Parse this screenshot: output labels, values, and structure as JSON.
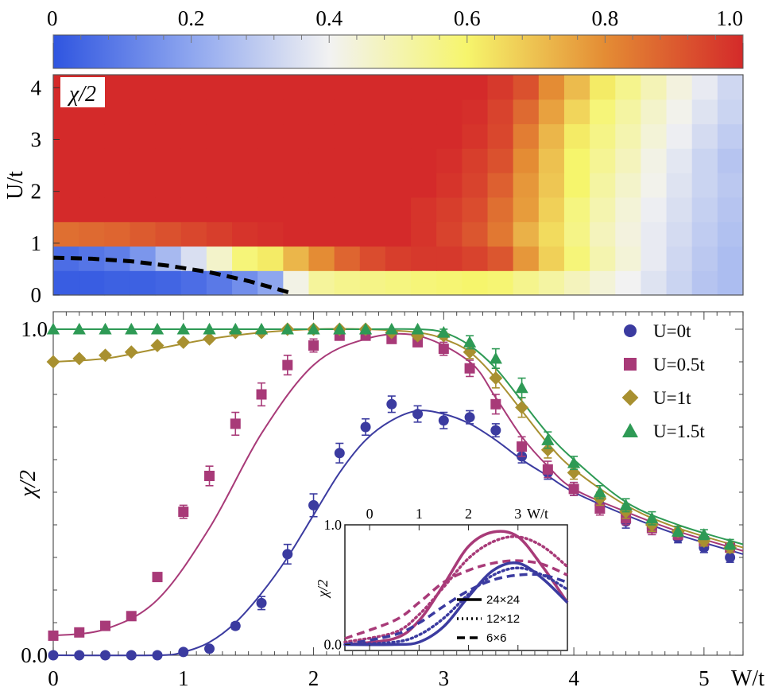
{
  "colorbar": {
    "tick_labels": [
      "0",
      "0.2",
      "0.4",
      "0.6",
      "0.8",
      "1.0"
    ],
    "ticks": [
      0,
      0.2,
      0.4,
      0.6,
      0.8,
      1.0
    ],
    "colormap": [
      [
        0.0,
        "#2f55e0"
      ],
      [
        0.2,
        "#8ea6ef"
      ],
      [
        0.4,
        "#f2f2f2"
      ],
      [
        0.6,
        "#f6f56c"
      ],
      [
        0.8,
        "#e48c34"
      ],
      [
        1.0,
        "#d42a2a"
      ]
    ]
  },
  "chart_data": [
    {
      "type": "heatmap",
      "panel_label": "χ/2",
      "xlim": [
        0,
        5.3
      ],
      "ylim": [
        0,
        4.25
      ],
      "ylabel": "U/t",
      "y_tick_labels": [
        "0",
        "1",
        "2",
        "3",
        "4"
      ],
      "y_ticks": [
        0,
        1,
        2,
        3,
        4
      ],
      "x_bins": 27,
      "y_bins": 9,
      "rows_bottom_to_top": [
        [
          0.02,
          0.02,
          0.03,
          0.03,
          0.04,
          0.06,
          0.09,
          0.14,
          0.2,
          0.42,
          0.53,
          0.55,
          0.56,
          0.57,
          0.58,
          0.59,
          0.6,
          0.59,
          0.55,
          0.52,
          0.48,
          0.44,
          0.4,
          0.36,
          0.32,
          0.28,
          0.26
        ],
        [
          0.06,
          0.08,
          0.1,
          0.16,
          0.25,
          0.35,
          0.46,
          0.58,
          0.62,
          0.72,
          0.8,
          0.88,
          0.93,
          0.96,
          0.97,
          0.97,
          0.95,
          0.91,
          0.78,
          0.67,
          0.58,
          0.5,
          0.44,
          0.38,
          0.33,
          0.29,
          0.26
        ],
        [
          0.86,
          0.87,
          0.88,
          0.9,
          0.92,
          0.94,
          0.96,
          0.98,
          0.99,
          1.0,
          1.0,
          1.0,
          1.0,
          1.0,
          0.98,
          0.95,
          0.91,
          0.84,
          0.73,
          0.65,
          0.56,
          0.48,
          0.43,
          0.38,
          0.34,
          0.3,
          0.27
        ],
        [
          1.0,
          1.0,
          1.0,
          1.0,
          1.0,
          1.0,
          1.0,
          1.0,
          1.0,
          1.0,
          1.0,
          1.0,
          1.0,
          1.0,
          0.98,
          0.96,
          0.93,
          0.86,
          0.77,
          0.67,
          0.57,
          0.5,
          0.44,
          0.39,
          0.35,
          0.31,
          0.28
        ],
        [
          1.0,
          1.0,
          1.0,
          1.0,
          1.0,
          1.0,
          1.0,
          1.0,
          1.0,
          1.0,
          1.0,
          1.0,
          1.0,
          1.0,
          1.0,
          0.98,
          0.95,
          0.89,
          0.78,
          0.69,
          0.6,
          0.52,
          0.46,
          0.41,
          0.36,
          0.32,
          0.29
        ],
        [
          1.0,
          1.0,
          1.0,
          1.0,
          1.0,
          1.0,
          1.0,
          1.0,
          1.0,
          1.0,
          1.0,
          1.0,
          1.0,
          1.0,
          1.0,
          0.99,
          0.96,
          0.92,
          0.8,
          0.7,
          0.6,
          0.54,
          0.48,
          0.42,
          0.37,
          0.32,
          0.28
        ],
        [
          1.0,
          1.0,
          1.0,
          1.0,
          1.0,
          1.0,
          1.0,
          1.0,
          1.0,
          1.0,
          1.0,
          1.0,
          1.0,
          1.0,
          1.0,
          1.0,
          0.98,
          0.94,
          0.83,
          0.72,
          0.62,
          0.56,
          0.5,
          0.44,
          0.39,
          0.34,
          0.3
        ],
        [
          1.0,
          1.0,
          1.0,
          1.0,
          1.0,
          1.0,
          1.0,
          1.0,
          1.0,
          1.0,
          1.0,
          1.0,
          1.0,
          1.0,
          1.0,
          1.0,
          0.99,
          0.95,
          0.87,
          0.76,
          0.66,
          0.58,
          0.52,
          0.46,
          0.41,
          0.36,
          0.32
        ],
        [
          1.0,
          1.0,
          1.0,
          1.0,
          1.0,
          1.0,
          1.0,
          1.0,
          1.0,
          1.0,
          1.0,
          1.0,
          1.0,
          1.0,
          1.0,
          1.0,
          1.0,
          0.97,
          0.92,
          0.8,
          0.71,
          0.62,
          0.55,
          0.49,
          0.43,
          0.38,
          0.33
        ]
      ],
      "boundary_curve": {
        "style": "dashed",
        "color": "#000000",
        "x": [
          0,
          0.3,
          0.6,
          0.9,
          1.2,
          1.5,
          1.7,
          1.85
        ],
        "y": [
          0.72,
          0.7,
          0.65,
          0.56,
          0.44,
          0.27,
          0.13,
          0.02
        ]
      }
    },
    {
      "type": "scatter",
      "xlabel": "W/t",
      "ylabel": "χ/2",
      "xlim": [
        0,
        5.3
      ],
      "ylim": [
        0,
        1.02
      ],
      "x_tick_labels": [
        "0",
        "1",
        "2",
        "3",
        "4",
        "5"
      ],
      "x_ticks": [
        0,
        1,
        2,
        3,
        4,
        5
      ],
      "y_tick_labels": [
        "0.0",
        "1.0"
      ],
      "y_ticks": [
        0.0,
        1.0
      ],
      "series": [
        {
          "name": "U=0t",
          "color": "#3b3ba0",
          "marker": "circle",
          "x": [
            0,
            0.2,
            0.4,
            0.6,
            0.8,
            1.0,
            1.2,
            1.4,
            1.6,
            1.8,
            2.0,
            2.2,
            2.4,
            2.6,
            2.8,
            3.0,
            3.2,
            3.4,
            3.6,
            3.8,
            4.0,
            4.2,
            4.4,
            4.6,
            4.8,
            5.0,
            5.2
          ],
          "y": [
            0.0,
            0.0,
            0.0,
            0.0,
            0.0,
            0.01,
            0.02,
            0.09,
            0.16,
            0.31,
            0.46,
            0.62,
            0.7,
            0.77,
            0.74,
            0.72,
            0.73,
            0.69,
            0.61,
            0.56,
            0.51,
            0.46,
            0.41,
            0.39,
            0.36,
            0.33,
            0.3
          ],
          "err": [
            0,
            0,
            0,
            0,
            0,
            0,
            0,
            0.01,
            0.02,
            0.03,
            0.035,
            0.03,
            0.025,
            0.025,
            0.025,
            0.025,
            0.02,
            0.02,
            0.02,
            0.02,
            0.02,
            0.02,
            0.02,
            0.02,
            0.015,
            0.015,
            0.015
          ],
          "fit_x": [
            0,
            0.8,
            1.0,
            1.2,
            1.4,
            1.6,
            1.8,
            2.0,
            2.2,
            2.4,
            2.6,
            2.8,
            3.0,
            3.2,
            3.4,
            3.6,
            3.8,
            4.0,
            4.4,
            4.8,
            5.3
          ],
          "fit_y": [
            0.0,
            0.0,
            0.01,
            0.04,
            0.1,
            0.19,
            0.3,
            0.43,
            0.56,
            0.66,
            0.72,
            0.75,
            0.74,
            0.71,
            0.66,
            0.6,
            0.55,
            0.5,
            0.43,
            0.37,
            0.31
          ]
        },
        {
          "name": "U=0.5t",
          "color": "#a83a78",
          "marker": "square",
          "x": [
            0,
            0.2,
            0.4,
            0.6,
            0.8,
            1.0,
            1.2,
            1.4,
            1.6,
            1.8,
            2.0,
            2.2,
            2.4,
            2.6,
            2.8,
            3.0,
            3.2,
            3.4,
            3.6,
            3.8,
            4.0,
            4.2,
            4.4,
            4.6,
            4.8,
            5.0,
            5.2
          ],
          "y": [
            0.06,
            0.07,
            0.09,
            0.12,
            0.24,
            0.44,
            0.55,
            0.71,
            0.8,
            0.89,
            0.95,
            0.98,
            0.98,
            0.97,
            0.96,
            0.94,
            0.88,
            0.77,
            0.64,
            0.57,
            0.51,
            0.45,
            0.42,
            0.39,
            0.37,
            0.35,
            0.33
          ],
          "err": [
            0.005,
            0.005,
            0.005,
            0.008,
            0.012,
            0.02,
            0.03,
            0.035,
            0.035,
            0.03,
            0.02,
            0.01,
            0.01,
            0.01,
            0.01,
            0.02,
            0.025,
            0.03,
            0.03,
            0.025,
            0.02,
            0.02,
            0.02,
            0.02,
            0.015,
            0.015,
            0.015
          ],
          "fit_x": [
            0,
            0.4,
            0.8,
            1.2,
            1.6,
            2.0,
            2.4,
            2.8,
            3.2,
            3.4,
            3.6,
            3.8,
            4.0,
            4.4,
            4.8,
            5.3
          ],
          "fit_y": [
            0.06,
            0.08,
            0.17,
            0.39,
            0.68,
            0.89,
            0.97,
            0.98,
            0.9,
            0.79,
            0.67,
            0.58,
            0.51,
            0.44,
            0.38,
            0.32
          ]
        },
        {
          "name": "U=1t",
          "color": "#a89030",
          "marker": "diamond",
          "x": [
            0,
            0.2,
            0.4,
            0.6,
            0.8,
            1.0,
            1.2,
            1.4,
            1.6,
            1.8,
            2.0,
            2.2,
            2.4,
            2.6,
            2.8,
            3.0,
            3.2,
            3.4,
            3.6,
            3.8,
            4.0,
            4.2,
            4.4,
            4.6,
            4.8,
            5.0,
            5.2
          ],
          "y": [
            0.9,
            0.91,
            0.92,
            0.93,
            0.95,
            0.96,
            0.97,
            0.99,
            0.99,
            1.0,
            1.0,
            1.0,
            1.0,
            0.99,
            0.98,
            0.98,
            0.93,
            0.85,
            0.76,
            0.63,
            0.56,
            0.48,
            0.44,
            0.4,
            0.38,
            0.35,
            0.33
          ],
          "err": [
            0.005,
            0.005,
            0.005,
            0.005,
            0.005,
            0.005,
            0.005,
            0.005,
            0.005,
            0.005,
            0.005,
            0.005,
            0.005,
            0.005,
            0.01,
            0.01,
            0.02,
            0.03,
            0.03,
            0.025,
            0.02,
            0.02,
            0.02,
            0.02,
            0.015,
            0.015,
            0.015
          ],
          "fit_x": [
            0,
            0.4,
            0.8,
            1.2,
            1.6,
            2.0,
            2.4,
            2.8,
            3.0,
            3.2,
            3.4,
            3.6,
            3.8,
            4.0,
            4.4,
            4.8,
            5.3
          ],
          "fit_y": [
            0.9,
            0.91,
            0.94,
            0.97,
            0.99,
            1.0,
            1.0,
            0.99,
            0.97,
            0.93,
            0.85,
            0.75,
            0.65,
            0.57,
            0.46,
            0.39,
            0.33
          ]
        },
        {
          "name": "U=1.5t",
          "color": "#2e9a55",
          "marker": "triangle",
          "x": [
            0,
            0.2,
            0.4,
            0.6,
            0.8,
            1.0,
            1.2,
            1.4,
            1.6,
            1.8,
            2.0,
            2.2,
            2.4,
            2.6,
            2.8,
            3.0,
            3.2,
            3.4,
            3.6,
            3.8,
            4.0,
            4.2,
            4.4,
            4.6,
            4.8,
            5.0,
            5.2
          ],
          "y": [
            1.0,
            1.0,
            1.0,
            1.0,
            1.0,
            1.0,
            1.0,
            1.0,
            1.0,
            1.0,
            1.0,
            1.0,
            1.0,
            1.0,
            1.0,
            0.99,
            0.96,
            0.91,
            0.82,
            0.66,
            0.59,
            0.5,
            0.46,
            0.42,
            0.38,
            0.37,
            0.34
          ],
          "err": [
            0.003,
            0.003,
            0.003,
            0.003,
            0.003,
            0.003,
            0.003,
            0.003,
            0.003,
            0.003,
            0.003,
            0.003,
            0.003,
            0.003,
            0.005,
            0.01,
            0.02,
            0.03,
            0.03,
            0.025,
            0.02,
            0.02,
            0.02,
            0.02,
            0.015,
            0.015,
            0.015
          ],
          "fit_x": [
            0,
            0.8,
            1.6,
            2.4,
            2.8,
            3.0,
            3.2,
            3.4,
            3.6,
            3.8,
            4.0,
            4.4,
            4.8,
            5.3
          ],
          "fit_y": [
            1.0,
            1.0,
            1.0,
            1.0,
            1.0,
            0.99,
            0.95,
            0.88,
            0.78,
            0.68,
            0.6,
            0.47,
            0.4,
            0.34
          ]
        }
      ]
    },
    {
      "type": "line",
      "xlabel": "W/t",
      "ylabel": "χ/2",
      "xlim": [
        -0.5,
        4.0
      ],
      "ylim": [
        -0.05,
        1.0
      ],
      "x_tick_labels": [
        "0",
        "1",
        "2",
        "3"
      ],
      "x_ticks": [
        0,
        1,
        2,
        3
      ],
      "y_tick_labels": [
        "0.0",
        "1.0"
      ],
      "y_ticks": [
        0.0,
        1.0
      ],
      "legend": [
        "24×24",
        "12×12",
        "6×6"
      ],
      "series": [
        {
          "size": "24×24",
          "group": "U=0.5t",
          "color": "#a83a78",
          "dash": "solid",
          "x": [
            -0.5,
            0.5,
            1.0,
            1.5,
            2.0,
            2.5,
            3.0,
            3.5,
            4.0
          ],
          "y": [
            0.0,
            0.05,
            0.2,
            0.5,
            0.82,
            0.94,
            0.9,
            0.65,
            0.35
          ]
        },
        {
          "size": "12×12",
          "group": "U=0.5t",
          "color": "#a83a78",
          "dash": "dot",
          "x": [
            -0.5,
            0.5,
            1.0,
            1.5,
            2.0,
            2.5,
            3.0,
            3.5,
            4.0
          ],
          "y": [
            0.02,
            0.1,
            0.25,
            0.48,
            0.72,
            0.86,
            0.9,
            0.82,
            0.65
          ]
        },
        {
          "size": "6×6",
          "group": "U=0.5t",
          "color": "#a83a78",
          "dash": "dash",
          "x": [
            -0.5,
            0.5,
            1.0,
            1.5,
            2.0,
            2.5,
            3.0,
            3.5,
            4.0
          ],
          "y": [
            0.05,
            0.2,
            0.35,
            0.52,
            0.62,
            0.68,
            0.7,
            0.67,
            0.58
          ]
        },
        {
          "size": "24×24",
          "group": "U=0t",
          "color": "#3b3ba0",
          "dash": "solid",
          "x": [
            -0.5,
            0.5,
            1.0,
            1.5,
            2.0,
            2.5,
            3.0,
            3.5,
            4.0
          ],
          "y": [
            0.0,
            0.0,
            0.02,
            0.15,
            0.4,
            0.62,
            0.68,
            0.55,
            0.35
          ]
        },
        {
          "size": "12×12",
          "group": "U=0t",
          "color": "#3b3ba0",
          "dash": "dot",
          "x": [
            -0.5,
            0.5,
            1.0,
            1.5,
            2.0,
            2.5,
            3.0,
            3.5,
            4.0
          ],
          "y": [
            0.0,
            0.02,
            0.08,
            0.22,
            0.42,
            0.58,
            0.64,
            0.58,
            0.46
          ]
        },
        {
          "size": "6×6",
          "group": "U=0t",
          "color": "#3b3ba0",
          "dash": "dash",
          "x": [
            -0.5,
            0.5,
            1.0,
            1.5,
            2.0,
            2.5,
            3.0,
            3.5,
            4.0
          ],
          "y": [
            0.0,
            0.08,
            0.18,
            0.32,
            0.45,
            0.54,
            0.58,
            0.58,
            0.52
          ]
        }
      ]
    }
  ]
}
